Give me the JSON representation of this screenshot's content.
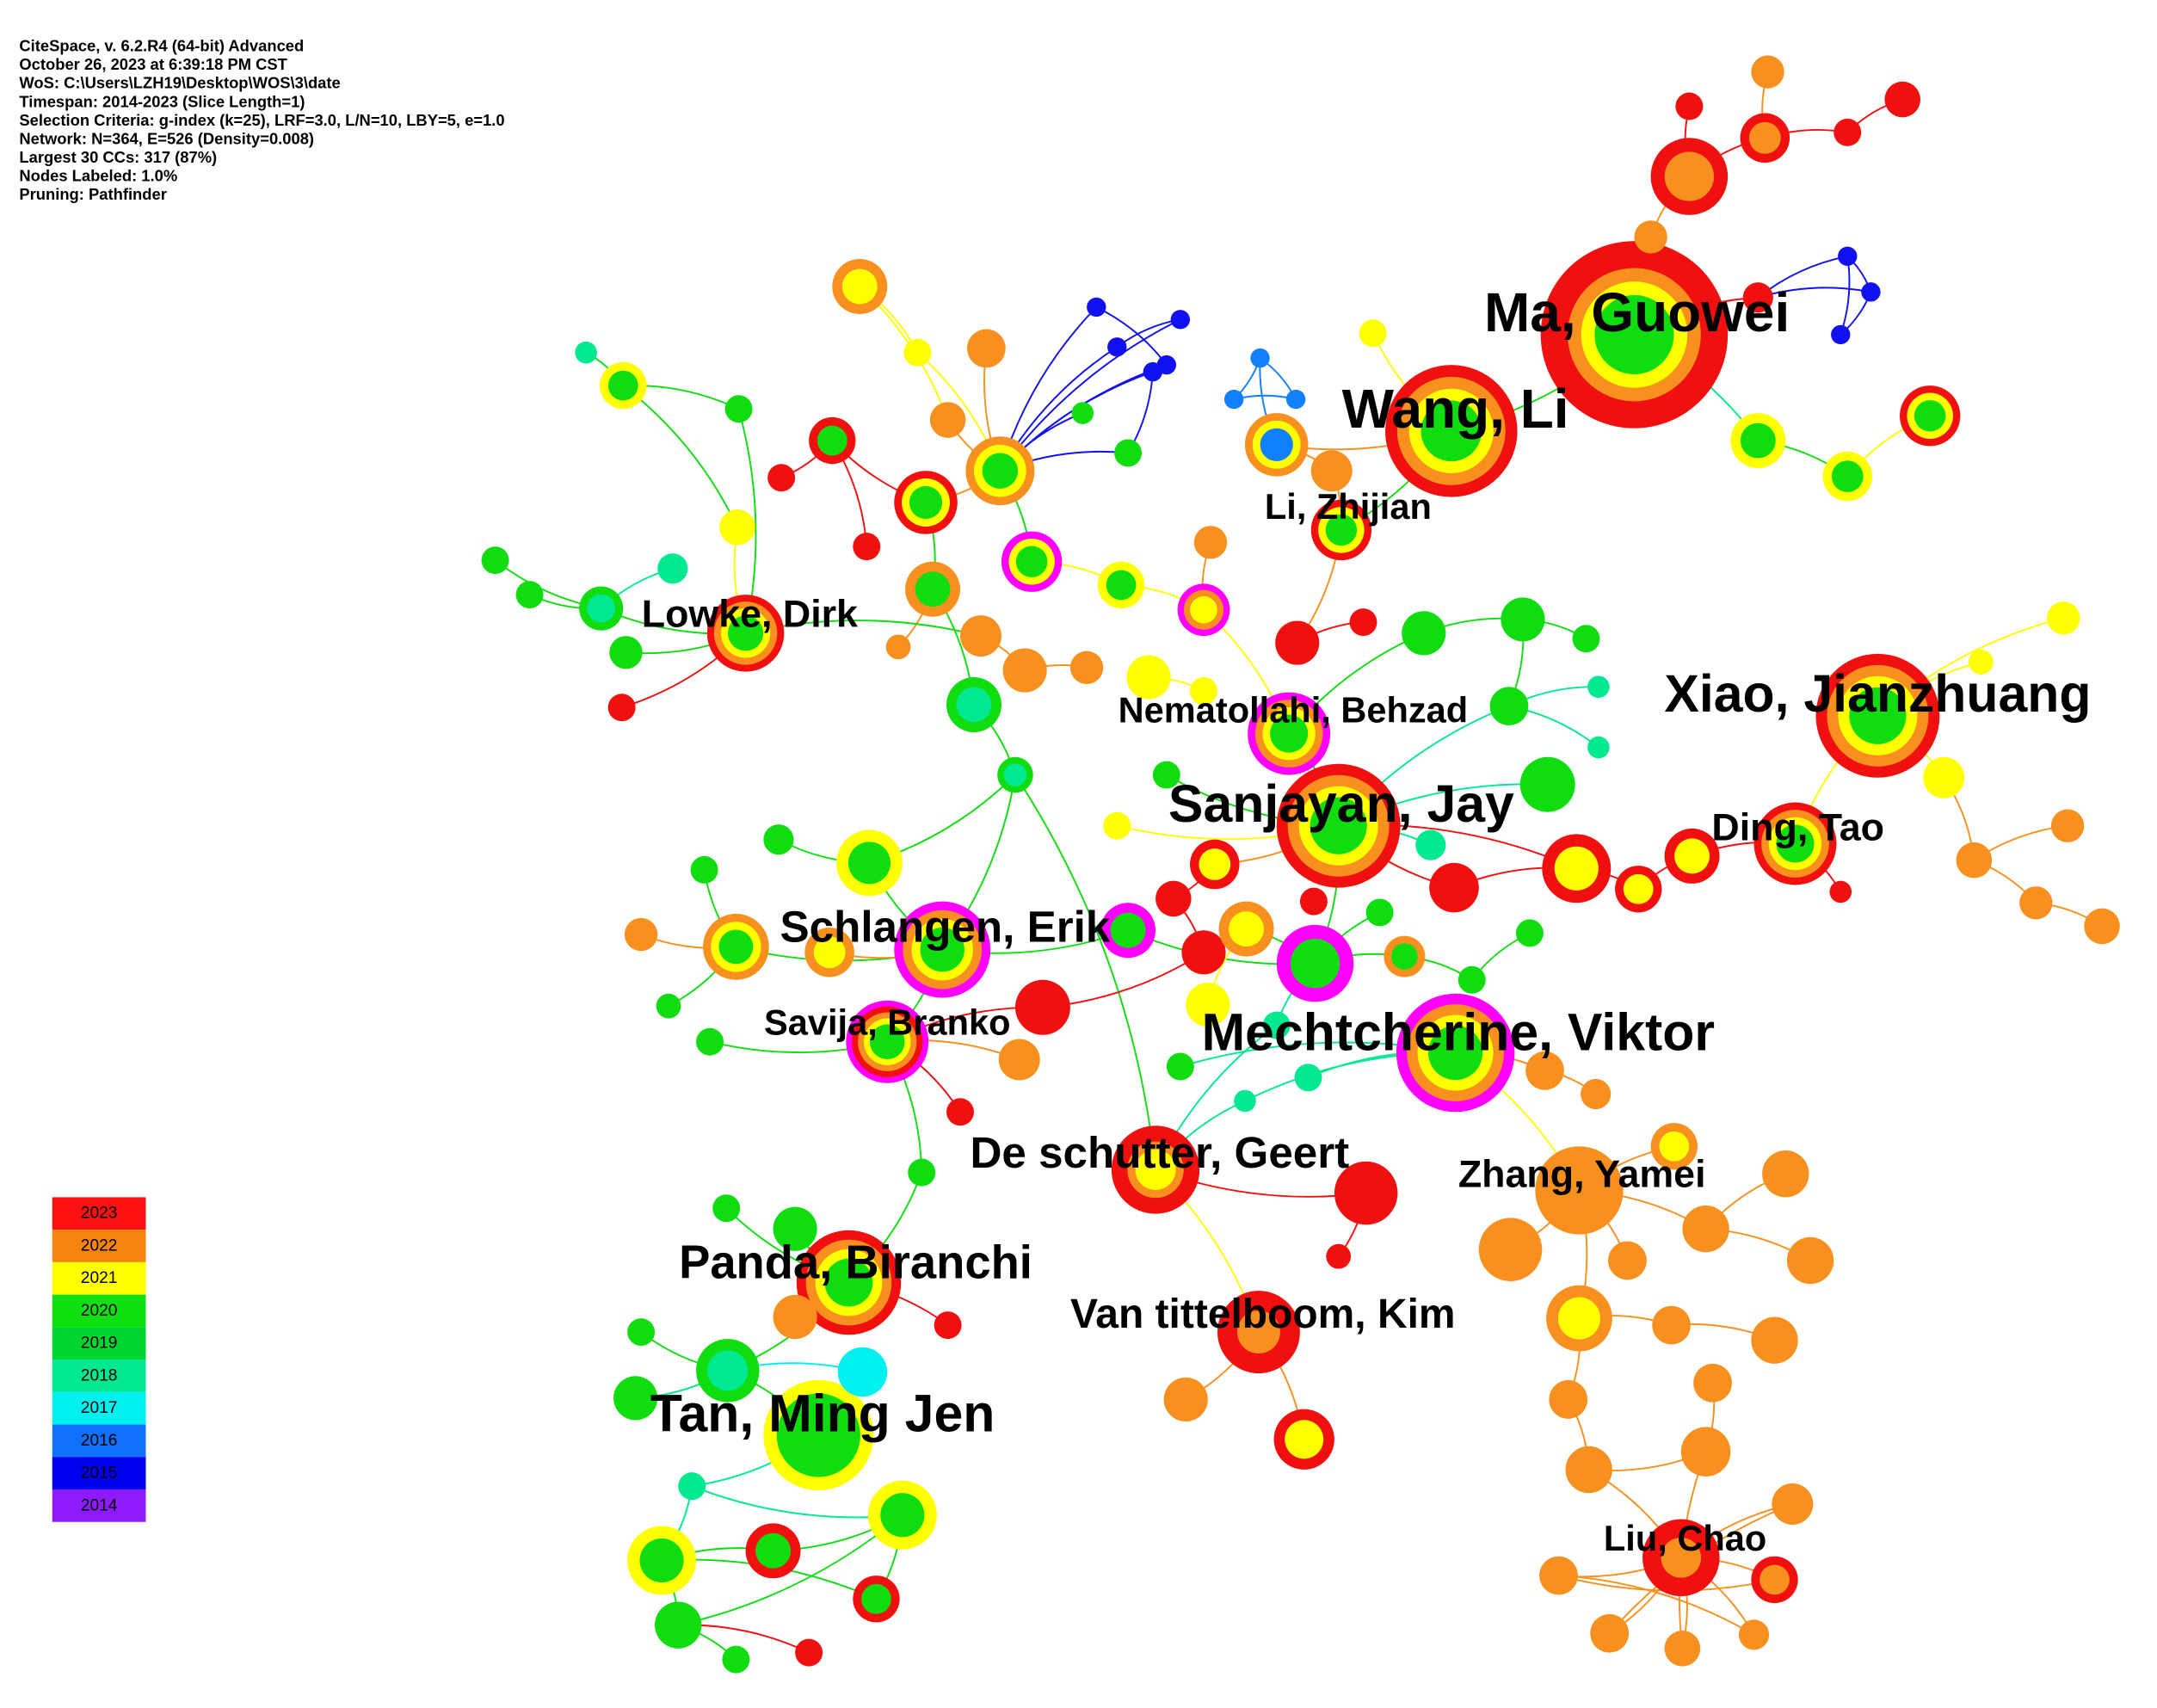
{
  "header": {
    "lines": [
      "CiteSpace, v. 6.2.R4 (64-bit) Advanced",
      "October 26, 2023 at 6:39:18 PM CST",
      "WoS: C:\\Users\\LZH19\\Desktop\\WOS\\3\\date",
      "Timespan: 2014-2023 (Slice Length=1)",
      "Selection Criteria: g-index (k=25), LRF=3.0, L/N=10, LBY=5, e=1.0",
      "Network: N=364, E=526 (Density=0.008)",
      "Largest 30 CCs: 317 (87%)",
      "Nodes Labeled: 1.0%",
      "Pruning: Pathfinder"
    ]
  },
  "legend": {
    "years": [
      "2023",
      "2022",
      "2021",
      "2020",
      "2019",
      "2018",
      "2017",
      "2016",
      "2015",
      "2014"
    ]
  },
  "labels": [
    "Ma, Guowei",
    "Wang, Li",
    "Li, Zhijian",
    "Lowke, Dirk",
    "Xiao, Jianzhuang",
    "Nematollahi, Behzad",
    "Sanjayan, Jay",
    "Ding, Tao",
    "Schlangen, Erik",
    "Savija, Branko",
    "Mechtcherine, Viktor",
    "De schutter, Geert",
    "Zhang, Yamei",
    "Panda, Biranchi",
    "Van tittelboom, Kim",
    "Tan, Ming Jen",
    "Liu, Chao"
  ]
}
